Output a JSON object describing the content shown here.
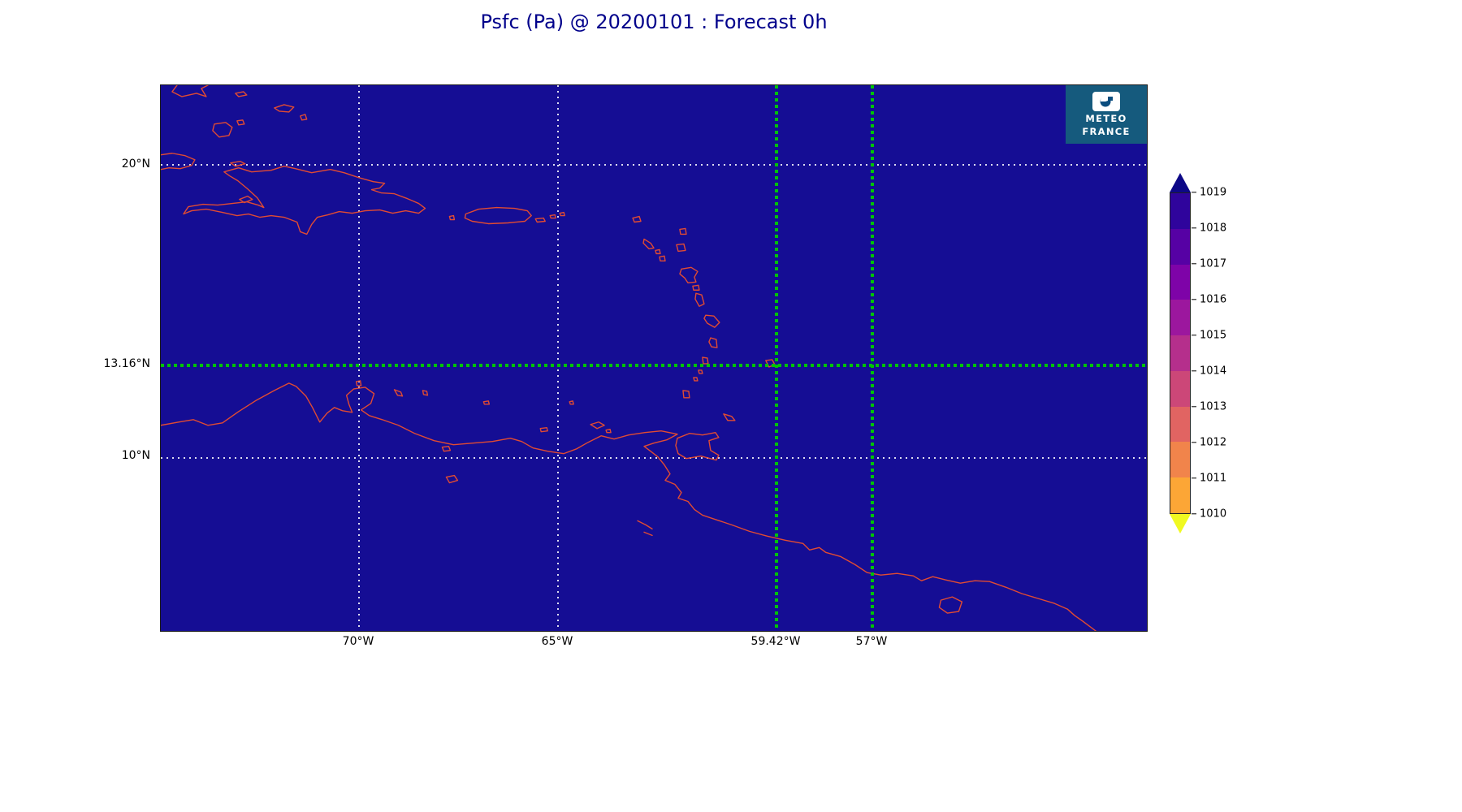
{
  "title": "Psfc (Pa) @ 20200101 : Forecast 0h",
  "colors": {
    "title": "#00008b",
    "map_fill": "#150d94",
    "coastline": "#e14b32",
    "grid_white": "#ffffff",
    "grid_green": "#00c400",
    "logo_bg": "#155a7d",
    "tick_label": "#000000"
  },
  "map": {
    "yticks": [
      {
        "label": "20°N"
      },
      {
        "label": "13.16°N"
      },
      {
        "label": "10°N"
      }
    ],
    "xticks": [
      {
        "label": "70°W"
      },
      {
        "label": "65°W"
      },
      {
        "label": "59.42°W"
      },
      {
        "label": "57°W"
      }
    ]
  },
  "logo": {
    "name": "Meteo-France",
    "line1": "METEO",
    "line2": "FRANCE"
  },
  "colorbar": {
    "ticks": [
      "1019",
      "1018",
      "1017",
      "1016",
      "1015",
      "1014",
      "1013",
      "1012",
      "1011",
      "1010"
    ],
    "band_colors_top_to_bottom": [
      "#2f049c",
      "#5601a4",
      "#7e03a8",
      "#9c179e",
      "#b52f8c",
      "#cc4778",
      "#e16462",
      "#f1844b",
      "#fca636"
    ],
    "over_color": "#0d0887",
    "under_color": "#f0f921"
  },
  "chart_data": {
    "type": "heatmap",
    "title": "Psfc (Pa) @ 20200101 : Forecast 0h",
    "variable": "Psfc",
    "units": "Pa",
    "datetime": "20200101",
    "forecast": "0h",
    "region": "Caribbean Sea and northern South America coastlines",
    "lon_extent": [
      "75°W",
      "50°W"
    ],
    "lat_extent": [
      "4°N",
      "22.7°N"
    ],
    "x_tick_labels": [
      "70°W",
      "65°W",
      "59.42°W",
      "57°W"
    ],
    "y_tick_labels": [
      "20°N",
      "13.16°N",
      "10°N"
    ],
    "white_gridlines": {
      "lats": [
        "20°N",
        "10°N"
      ],
      "lons": [
        "70°W",
        "65°W"
      ]
    },
    "highlight_crosshair": {
      "lat": "13.16°N",
      "lons": [
        "59.42°W",
        "57°W"
      ],
      "style": "green dotted"
    },
    "colorbar_levels": [
      1010,
      1011,
      1012,
      1013,
      1014,
      1015,
      1016,
      1017,
      1018,
      1019
    ],
    "colorbar_extend": "both",
    "field_summary": "Surface pressure field is uniform at the dark-blue top of the scale (~1019) over the whole domain; only red coastlines and gridlines are visible over the fill."
  }
}
